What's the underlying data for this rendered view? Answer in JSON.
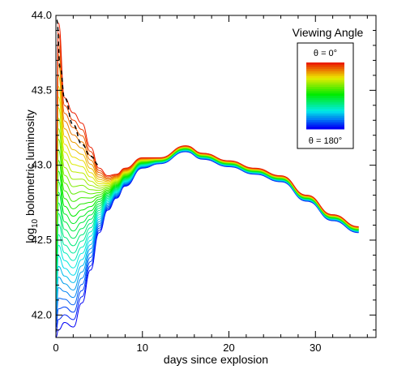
{
  "chart_data": {
    "type": "line",
    "xlabel": "days since explosion",
    "ylabel_main": "log",
    "ylabel_sub": "10",
    "ylabel_rest": " bolometric luminosity",
    "xlim": [
      0,
      37
    ],
    "ylim": [
      41.85,
      44.0
    ],
    "x_ticks": [
      0,
      10,
      20,
      30
    ],
    "x_tick_labels": [
      "0",
      "10",
      "20",
      "30"
    ],
    "y_ticks": [
      42.0,
      42.5,
      43.0,
      43.5,
      44.0
    ],
    "y_tick_labels": [
      "42.0",
      "42.5",
      "43.0",
      "43.5",
      "44.0"
    ],
    "grid": false,
    "series_count": 30,
    "colormap": "rainbow",
    "dashed_series": {
      "style": "dashed",
      "color": "#000000",
      "x": [
        0.1,
        0.5,
        1,
        2,
        3,
        4,
        5
      ],
      "y": [
        43.97,
        43.65,
        43.45,
        43.27,
        43.14,
        43.06,
        43.0
      ]
    },
    "series_shape": {
      "x": [
        0,
        0.3,
        1,
        2,
        3,
        4,
        5,
        6,
        7,
        8,
        10,
        12,
        15,
        17,
        20,
        23,
        26,
        29,
        32,
        35,
        37
      ],
      "common_tail": [
        43.05,
        43.13,
        43.08,
        43.03,
        42.98,
        42.93,
        42.8,
        42.67,
        42.59
      ],
      "top_start": [
        42.85,
        43.95,
        43.45,
        43.35,
        43.28,
        43.12,
        42.98,
        42.93,
        42.94,
        42.98,
        43.05
      ],
      "bottom_start": [
        41.85,
        41.9,
        41.95,
        41.92,
        42.08,
        42.3,
        42.55,
        42.7,
        42.78,
        42.86,
        42.98
      ]
    },
    "legend": {
      "title": "Viewing Angle",
      "top_label": "θ = 0°",
      "bottom_label": "θ = 180°",
      "position": "top-right"
    }
  }
}
